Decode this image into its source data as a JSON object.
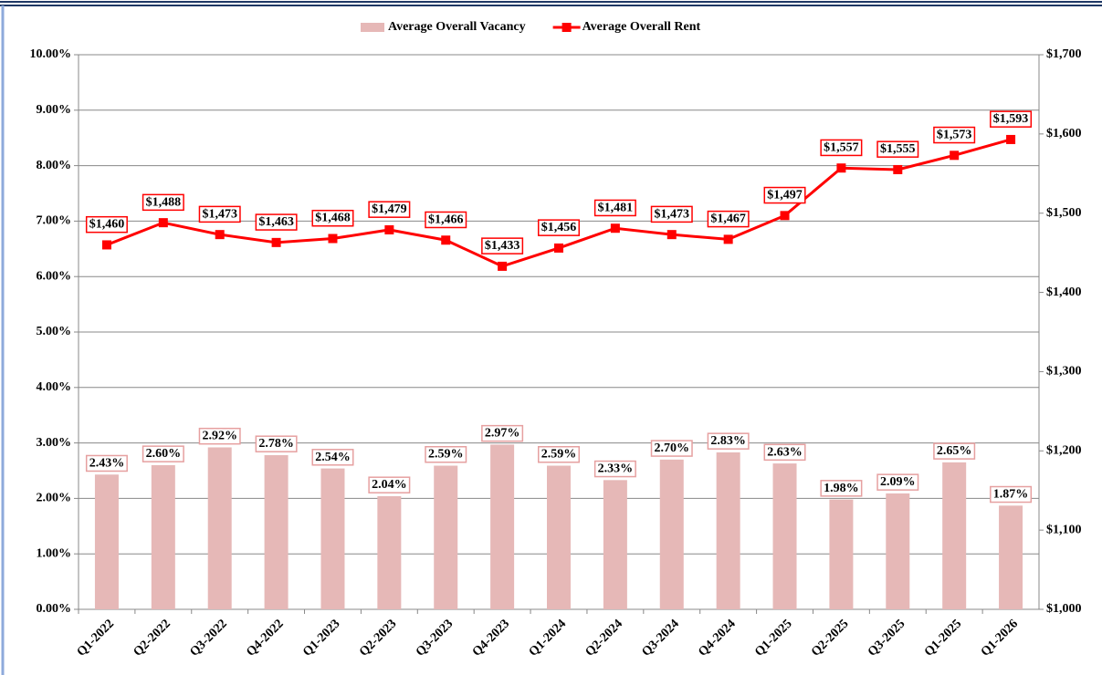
{
  "chart_data": {
    "type": "bar-line",
    "categories": [
      "Q1-2022",
      "Q2-2022",
      "Q3-2022",
      "Q4-2022",
      "Q1-2023",
      "Q2-2023",
      "Q3-2023",
      "Q4-2023",
      "Q1-2024",
      "Q2-2024",
      "Q3-2024",
      "Q4-2024",
      "Q1-2025",
      "Q2-2025",
      "Q3-2025",
      "Q1-2025",
      "Q1-2026"
    ],
    "series": [
      {
        "name": "Average Overall Vacancy",
        "type": "bar",
        "color": "#e6b8b7",
        "values": [
          2.43,
          2.6,
          2.92,
          2.78,
          2.54,
          2.04,
          2.59,
          2.97,
          2.59,
          2.33,
          2.7,
          2.83,
          2.63,
          1.98,
          2.09,
          2.65,
          1.87
        ],
        "value_labels": [
          "2.43%",
          "2.60%",
          "2.92%",
          "2.78%",
          "2.54%",
          "2.04%",
          "2.59%",
          "2.97%",
          "2.59%",
          "2.33%",
          "2.70%",
          "2.83%",
          "2.63%",
          "1.98%",
          "2.09%",
          "2.65%",
          "1.87%"
        ]
      },
      {
        "name": "Average Overall Rent",
        "type": "line",
        "axis": "y2",
        "color": "#ff0000",
        "values": [
          1460,
          1488,
          1473,
          1463,
          1468,
          1479,
          1466,
          1433,
          1456,
          1481,
          1473,
          1467,
          1497,
          1557,
          1555,
          1573,
          1593
        ],
        "value_labels": [
          "$1,460",
          "$1,488",
          "$1,473",
          "$1,463",
          "$1,468",
          "$1,479",
          "$1,466",
          "$1,433",
          "$1,456",
          "$1,481",
          "$1,473",
          "$1,467",
          "$1,497",
          "$1,557",
          "$1,555",
          "$1,573",
          "$1,593"
        ]
      }
    ],
    "ylim": [
      0,
      10
    ],
    "yticks": [
      {
        "value": 0,
        "label": "0.00%"
      },
      {
        "value": 1,
        "label": "1.00%"
      },
      {
        "value": 2,
        "label": "2.00%"
      },
      {
        "value": 3,
        "label": "3.00%"
      },
      {
        "value": 4,
        "label": "4.00%"
      },
      {
        "value": 5,
        "label": "5.00%"
      },
      {
        "value": 6,
        "label": "6.00%"
      },
      {
        "value": 7,
        "label": "7.00%"
      },
      {
        "value": 8,
        "label": "8.00%"
      },
      {
        "value": 9,
        "label": "9.00%"
      },
      {
        "value": 10,
        "label": "10.00%"
      }
    ],
    "y2lim": [
      1000,
      1700
    ],
    "y2ticks": [
      {
        "value": 1000,
        "label": "$1,000"
      },
      {
        "value": 1100,
        "label": "$1,100"
      },
      {
        "value": 1200,
        "label": "$1,200"
      },
      {
        "value": 1300,
        "label": "$1,300"
      },
      {
        "value": 1400,
        "label": "$1,400"
      },
      {
        "value": 1500,
        "label": "$1,500"
      },
      {
        "value": 1600,
        "label": "$1,600"
      },
      {
        "value": 1700,
        "label": "$1,700"
      }
    ],
    "grid": true,
    "legend": "top"
  }
}
